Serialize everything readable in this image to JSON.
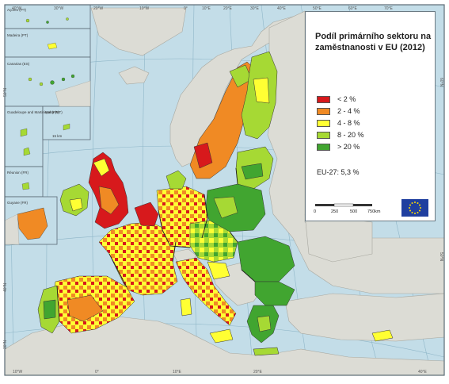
{
  "title": "Podíl primárního sektoru na zaměstnanosti v EU (2012)",
  "legend": {
    "items": [
      {
        "label": "< 2 %",
        "color": "#d7191c"
      },
      {
        "label": "2 - 4 %",
        "color": "#f08a24"
      },
      {
        "label": "4 - 8 %",
        "color": "#ffff33"
      },
      {
        "label": "8 - 20 %",
        "color": "#a6d934"
      },
      {
        "label": "> 20 %",
        "color": "#41a530"
      }
    ]
  },
  "eu_total": "EU-27: 5,3 %",
  "scale": {
    "ticks": [
      "0",
      "250",
      "500",
      "750km"
    ]
  },
  "graticule": {
    "top": [
      "40°W",
      "30°W",
      "20°W",
      "10°W",
      "0°",
      "10°E",
      "20°E",
      "30°E",
      "40°E",
      "50°E",
      "60°E",
      "70°E"
    ],
    "bottom": [
      "10°W",
      "0°",
      "10°E",
      "20°E",
      "40°E"
    ],
    "left": [
      "50°N",
      "40°N",
      "30°N"
    ],
    "right": [
      "60°N",
      "50°N"
    ]
  },
  "insets": [
    "Açores (PT)",
    "Madeira (PT)",
    "Canarias (ES)",
    "Guadeloupe and Martinique (FR)",
    "Malta (MT)",
    "Réunion (FR)",
    "Guyane (FR)"
  ],
  "inset_scale": "15 km",
  "colors": {
    "sea": "#c3dde8",
    "non_eu_land": "#dcdcd5",
    "border": "#222222",
    "frame": "#5a6a74"
  },
  "icons": {
    "legend": "eu-flag-icon"
  }
}
